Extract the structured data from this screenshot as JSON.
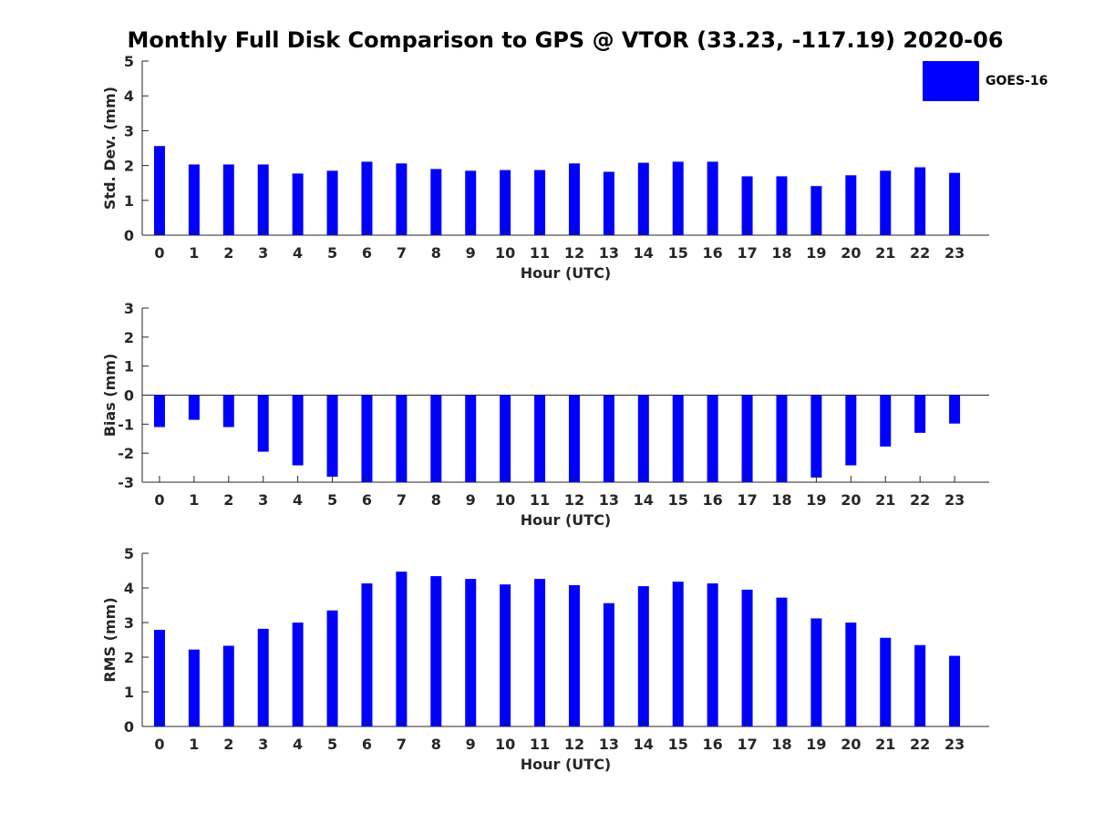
{
  "title": "Monthly Full Disk Comparison to GPS @ VTOR (33.23, -117.19) 2020-06",
  "legend": {
    "label": "GOES-16",
    "color": "#0000ff"
  },
  "chart_data": [
    {
      "type": "bar",
      "ylabel": "Std. Dev. (mm)",
      "xlabel": "Hour (UTC)",
      "ylim": [
        0,
        5
      ],
      "yticks": [
        "0",
        "1",
        "2",
        "3",
        "4",
        "5"
      ],
      "categories": [
        "0",
        "1",
        "2",
        "3",
        "4",
        "5",
        "6",
        "7",
        "8",
        "9",
        "10",
        "11",
        "12",
        "13",
        "14",
        "15",
        "16",
        "17",
        "18",
        "19",
        "20",
        "21",
        "22",
        "23"
      ],
      "series": [
        {
          "name": "GOES-16",
          "values": [
            2.56,
            2.03,
            2.03,
            2.03,
            1.77,
            1.85,
            2.11,
            2.06,
            1.9,
            1.85,
            1.87,
            1.87,
            2.06,
            1.82,
            2.08,
            2.11,
            2.11,
            1.69,
            1.69,
            1.41,
            1.72,
            1.85,
            1.95,
            1.79
          ]
        }
      ]
    },
    {
      "type": "bar",
      "ylabel": "Bias (mm)",
      "xlabel": "Hour (UTC)",
      "ylim": [
        -3,
        3
      ],
      "yticks": [
        "-3",
        "-2",
        "-1",
        "0",
        "1",
        "2",
        "3"
      ],
      "categories": [
        "0",
        "1",
        "2",
        "3",
        "4",
        "5",
        "6",
        "7",
        "8",
        "9",
        "10",
        "11",
        "12",
        "13",
        "14",
        "15",
        "16",
        "17",
        "18",
        "19",
        "20",
        "21",
        "22",
        "23"
      ],
      "series": [
        {
          "name": "GOES-16",
          "values": [
            -1.1,
            -0.85,
            -1.1,
            -1.95,
            -2.42,
            -2.81,
            -3.0,
            -3.0,
            -3.0,
            -3.0,
            -3.0,
            -3.0,
            -3.0,
            -3.0,
            -3.0,
            -3.0,
            -3.0,
            -3.0,
            -3.0,
            -2.84,
            -2.42,
            -1.77,
            -1.3,
            -0.98
          ]
        }
      ]
    },
    {
      "type": "bar",
      "ylabel": "RMS (mm)",
      "xlabel": "Hour (UTC)",
      "ylim": [
        0,
        5
      ],
      "yticks": [
        "0",
        "1",
        "2",
        "3",
        "4",
        "5"
      ],
      "categories": [
        "0",
        "1",
        "2",
        "3",
        "4",
        "5",
        "6",
        "7",
        "8",
        "9",
        "10",
        "11",
        "12",
        "13",
        "14",
        "15",
        "16",
        "17",
        "18",
        "19",
        "20",
        "21",
        "22",
        "23"
      ],
      "series": [
        {
          "name": "GOES-16",
          "values": [
            2.79,
            2.22,
            2.33,
            2.82,
            3.0,
            3.35,
            4.13,
            4.47,
            4.34,
            4.26,
            4.1,
            4.26,
            4.08,
            3.56,
            4.05,
            4.18,
            4.13,
            3.95,
            3.72,
            3.12,
            3.0,
            2.56,
            2.35,
            2.04
          ]
        }
      ]
    }
  ]
}
